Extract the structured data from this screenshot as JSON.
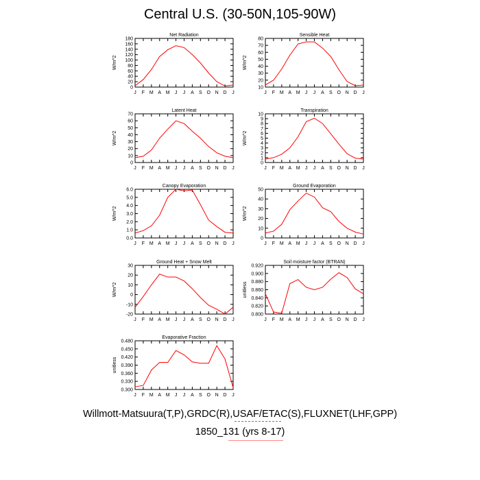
{
  "title": "Central U.S. (30-50N,105-90W)",
  "footer": {
    "source": "Willmott-Matsuura(T,P),GRDC(R),USAF/ETAC(S),FLUXNET(LHF,GPP)",
    "case": "1850_131 (yrs 8-17)"
  },
  "colors": {
    "line": "#ff0000",
    "axis": "#000000"
  },
  "chart_data": [
    {
      "type": "line",
      "title": "Net Radiation",
      "ylabel": "W/m^2",
      "categories": [
        "J",
        "F",
        "M",
        "A",
        "M",
        "J",
        "J",
        "A",
        "S",
        "O",
        "N",
        "D",
        "J"
      ],
      "ylim": [
        0,
        180
      ],
      "yticks": [
        "0",
        "20",
        "40",
        "60",
        "80",
        "100",
        "120",
        "140",
        "160",
        "180"
      ],
      "series": [
        {
          "values": [
            5,
            28,
            65,
            113,
            138,
            153,
            146,
            120,
            89,
            52,
            20,
            4,
            8
          ]
        }
      ]
    },
    {
      "type": "line",
      "title": "Sensible Heat",
      "ylabel": "W/m^2",
      "categories": [
        "J",
        "F",
        "M",
        "A",
        "M",
        "J",
        "J",
        "A",
        "S",
        "O",
        "N",
        "D",
        "J"
      ],
      "ylim": [
        10,
        80
      ],
      "yticks": [
        "10",
        "20",
        "30",
        "40",
        "50",
        "60",
        "70",
        "80"
      ],
      "series": [
        {
          "values": [
            13,
            20,
            36,
            56,
            72,
            75,
            75,
            66,
            54,
            35,
            18,
            12,
            13
          ]
        }
      ]
    },
    {
      "type": "line",
      "title": "Latent Heat",
      "ylabel": "W/m^2",
      "categories": [
        "J",
        "F",
        "M",
        "A",
        "M",
        "J",
        "J",
        "A",
        "S",
        "O",
        "N",
        "D",
        "J"
      ],
      "ylim": [
        0,
        70
      ],
      "yticks": [
        "0",
        "10",
        "20",
        "30",
        "40",
        "50",
        "60",
        "70"
      ],
      "series": [
        {
          "values": [
            7,
            9,
            18,
            35,
            48,
            60,
            56,
            45,
            35,
            23,
            14,
            9,
            7
          ]
        }
      ]
    },
    {
      "type": "line",
      "title": "Transpiration",
      "ylabel": "W/m^2",
      "categories": [
        "J",
        "F",
        "M",
        "A",
        "M",
        "J",
        "J",
        "A",
        "S",
        "O",
        "N",
        "D",
        "J"
      ],
      "ylim": [
        0,
        10
      ],
      "yticks": [
        "0",
        "1",
        "2",
        "3",
        "4",
        "5",
        "6",
        "7",
        "8",
        "9",
        "10"
      ],
      "series": [
        {
          "values": [
            0.7,
            1.0,
            1.7,
            3.0,
            5.3,
            8.4,
            9.1,
            8.0,
            5.9,
            3.8,
            1.8,
            0.9,
            0.7
          ]
        }
      ]
    },
    {
      "type": "line",
      "title": "Canopy Evaporation",
      "ylabel": "W/m^2",
      "categories": [
        "J",
        "F",
        "M",
        "A",
        "M",
        "J",
        "J",
        "A",
        "S",
        "O",
        "N",
        "D",
        "J"
      ],
      "ylim": [
        0,
        6
      ],
      "yticks": [
        "0.0",
        "1.0",
        "2.0",
        "3.0",
        "4.0",
        "5.0",
        "6.0"
      ],
      "series": [
        {
          "values": [
            0.6,
            0.9,
            1.5,
            2.8,
            5.0,
            6.0,
            5.8,
            5.9,
            4.1,
            2.2,
            1.4,
            0.7,
            0.6
          ]
        }
      ]
    },
    {
      "type": "line",
      "title": "Ground Evaporation",
      "ylabel": "W/m^2",
      "categories": [
        "J",
        "F",
        "M",
        "A",
        "M",
        "J",
        "J",
        "A",
        "S",
        "O",
        "N",
        "D",
        "J"
      ],
      "ylim": [
        0,
        50
      ],
      "yticks": [
        "0",
        "10",
        "20",
        "30",
        "40",
        "50"
      ],
      "series": [
        {
          "values": [
            5,
            7,
            14,
            29,
            38,
            46,
            42,
            31,
            27,
            17,
            10,
            6,
            4
          ]
        }
      ]
    },
    {
      "type": "line",
      "title": "Ground Heat + Snow Melt",
      "ylabel": "W/m^2",
      "categories": [
        "J",
        "F",
        "M",
        "A",
        "M",
        "J",
        "J",
        "A",
        "S",
        "O",
        "N",
        "D",
        "J"
      ],
      "ylim": [
        -20,
        30
      ],
      "yticks": [
        "-20",
        "-10",
        "0",
        "10",
        "20",
        "30"
      ],
      "series": [
        {
          "values": [
            -13,
            -2,
            10,
            21,
            18,
            18,
            14,
            6,
            -3,
            -11,
            -15,
            -20,
            -13
          ]
        }
      ]
    },
    {
      "type": "line",
      "title": "Soil moisture factor (BTRAN)",
      "ylabel": "unitless",
      "categories": [
        "J",
        "F",
        "M",
        "A",
        "M",
        "J",
        "J",
        "A",
        "S",
        "O",
        "N",
        "D",
        "J"
      ],
      "ylim": [
        0.8,
        0.92
      ],
      "yticks": [
        "0.800",
        "0.820",
        "0.840",
        "0.860",
        "0.880",
        "0.900",
        "0.920"
      ],
      "series": [
        {
          "values": [
            0.85,
            0.805,
            0.802,
            0.875,
            0.885,
            0.866,
            0.86,
            0.866,
            0.886,
            0.902,
            0.89,
            0.862,
            0.85
          ]
        }
      ]
    },
    {
      "type": "line",
      "title": "Evaporative Fraction",
      "ylabel": "unitless",
      "categories": [
        "J",
        "F",
        "M",
        "A",
        "M",
        "J",
        "J",
        "A",
        "S",
        "O",
        "N",
        "D",
        "J"
      ],
      "ylim": [
        0.3,
        0.48
      ],
      "yticks": [
        "0.300",
        "0.330",
        "0.360",
        "0.390",
        "0.420",
        "0.450",
        "0.480"
      ],
      "series": [
        {
          "values": [
            0.31,
            0.315,
            0.372,
            0.4,
            0.4,
            0.444,
            0.428,
            0.402,
            0.397,
            0.397,
            0.462,
            0.413,
            0.307
          ]
        }
      ]
    }
  ]
}
